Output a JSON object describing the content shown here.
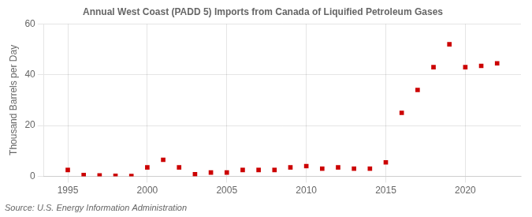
{
  "chart_data": {
    "type": "scatter",
    "title": "Annual West Coast (PADD 5) Imports from Canada of Liquified Petroleum Gases",
    "ylabel": "Thousand Barrels per Day",
    "annotation": "Source: U.S. Energy Information Administration",
    "x": [
      1995,
      1996,
      1997,
      1998,
      1999,
      2000,
      2001,
      2002,
      2003,
      2004,
      2005,
      2006,
      2007,
      2008,
      2009,
      2010,
      2011,
      2012,
      2013,
      2014,
      2015,
      2016,
      2017,
      2018,
      2019,
      2020,
      2021,
      2022
    ],
    "values": [
      2.5,
      0.5,
      0.3,
      0.2,
      0.1,
      3.5,
      6.5,
      3.5,
      0.8,
      1.5,
      1.5,
      2.5,
      2.5,
      2.5,
      3.5,
      4.0,
      3.0,
      3.5,
      3.0,
      3.0,
      5.5,
      25.0,
      34.0,
      43.0,
      52.0,
      43.0,
      43.5,
      44.5
    ],
    "color": "#cc0000",
    "marker": "square",
    "xlim": [
      1993.5,
      2023.5
    ],
    "ylim": [
      0,
      60
    ],
    "xticks": [
      1995,
      2000,
      2005,
      2010,
      2015,
      2020
    ],
    "yticks": [
      0,
      20,
      40,
      60
    ],
    "grid": true
  }
}
